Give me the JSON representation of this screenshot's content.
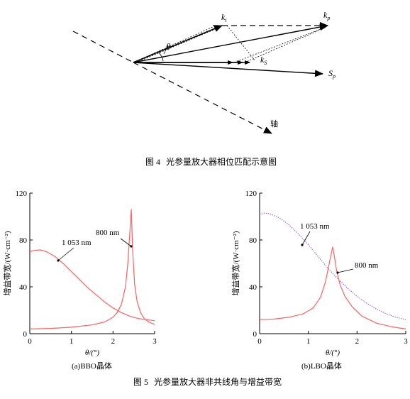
{
  "figure4": {
    "labels": {
      "ki": "k",
      "ki_sub": "i",
      "kp": "k",
      "kp_sub": "p",
      "ks": "k",
      "ks_sub": "S",
      "sp": "S",
      "sp_sub": "p",
      "theta": "θ",
      "axis": "轴"
    },
    "caption": {
      "num": "图 4",
      "text": "光参量放大器相位匹配示意图"
    }
  },
  "figure5": {
    "caption": {
      "num": "图 5",
      "text": "光参量放大器非共线角与增益带宽"
    },
    "panels": [
      {
        "sublabel": "(a)BBO晶体"
      },
      {
        "sublabel": "(b)LBO晶体"
      }
    ]
  },
  "chart_data": [
    {
      "type": "line",
      "xlabel": "θ/(°)",
      "ylabel": "增益带宽/(W·cm⁻²)",
      "xlim": [
        0,
        3
      ],
      "ylim": [
        0,
        120
      ],
      "xticks": [
        0,
        1,
        2,
        3
      ],
      "yticks": [
        0,
        40,
        80,
        120
      ],
      "series": [
        {
          "name": "1 053 nm",
          "color": "#ff6060",
          "style": "solid",
          "x": [
            0,
            0.1,
            0.25,
            0.4,
            0.6,
            0.8,
            1.0,
            1.2,
            1.4,
            1.6,
            1.8,
            2.0,
            2.2,
            2.4,
            2.6,
            2.8,
            3.0
          ],
          "y": [
            70,
            71,
            71.5,
            70,
            66,
            60,
            53,
            46,
            39,
            33,
            27,
            22,
            18,
            15,
            13,
            12,
            11
          ]
        },
        {
          "name": "800 nm",
          "color": "#ff6060",
          "style": "solid",
          "x": [
            0,
            0.5,
            1.0,
            1.5,
            1.8,
            2.0,
            2.1,
            2.2,
            2.3,
            2.36,
            2.41,
            2.44,
            2.47,
            2.52,
            2.58,
            2.66,
            2.75,
            2.85,
            3.0
          ],
          "y": [
            4,
            4.5,
            5.5,
            7.5,
            10,
            14,
            18,
            25,
            40,
            62,
            90,
            106,
            72,
            42,
            27,
            18,
            13,
            10,
            8
          ]
        }
      ],
      "annotations": [
        "1 053 nm",
        "800 nm"
      ]
    },
    {
      "type": "line",
      "xlabel": "θ/(°)",
      "ylabel": "增益带宽/(W·cm⁻²)",
      "xlim": [
        0,
        3
      ],
      "ylim": [
        0,
        120
      ],
      "xticks": [
        0,
        1,
        2,
        3
      ],
      "yticks": [
        0,
        40,
        80,
        120
      ],
      "series": [
        {
          "name": "1 053 nm",
          "color": "#9a6ee0",
          "style": "dotted",
          "x": [
            0,
            0.1,
            0.2,
            0.4,
            0.6,
            0.8,
            1.0,
            1.2,
            1.4,
            1.6,
            1.8,
            2.0,
            2.2,
            2.4,
            2.6,
            2.8,
            3.0
          ],
          "y": [
            102,
            103,
            102.5,
            99,
            93,
            85,
            76,
            66,
            56,
            47,
            39,
            32,
            26,
            21,
            17,
            14,
            12
          ]
        },
        {
          "name": "800 nm",
          "color": "#ff6060",
          "style": "solid",
          "x": [
            0,
            0.3,
            0.6,
            0.9,
            1.1,
            1.25,
            1.35,
            1.42,
            1.47,
            1.5,
            1.53,
            1.58,
            1.65,
            1.75,
            1.9,
            2.1,
            2.4,
            2.7,
            3.0
          ],
          "y": [
            12,
            12.5,
            14,
            17,
            22,
            31,
            44,
            58,
            68,
            74,
            67,
            54,
            42,
            32,
            23,
            15,
            9,
            6,
            4
          ]
        }
      ],
      "annotations": [
        "1 053 nm",
        "800 nm"
      ]
    }
  ]
}
